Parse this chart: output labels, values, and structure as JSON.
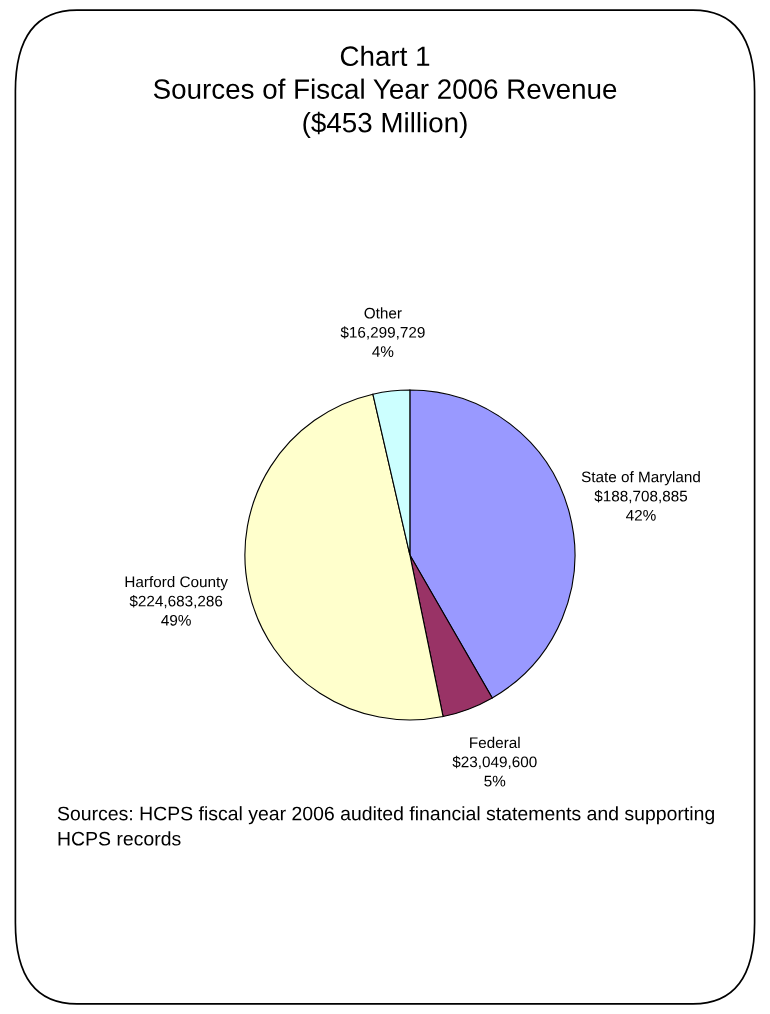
{
  "chart_data": {
    "type": "pie",
    "title": "Chart 1\nSources of Fiscal Year 2006 Revenue\n($453 Million)",
    "categories": [
      "State of Maryland",
      "Federal",
      "Harford County",
      "Other"
    ],
    "values": [
      188708885,
      23049600,
      224683286,
      16299729
    ],
    "value_labels": [
      "$188,708,885\n42%",
      "$23,049,600\n5%",
      "$224,683,286\n49%",
      "$16,299,729\n4%"
    ],
    "colors": [
      "#9999ff",
      "#993366",
      "#ffffcc",
      "#ccffff"
    ],
    "annotations": [
      "Sources: HCPS fiscal year 2006 audited financial statements and supporting HCPS records"
    ],
    "legend": false
  }
}
